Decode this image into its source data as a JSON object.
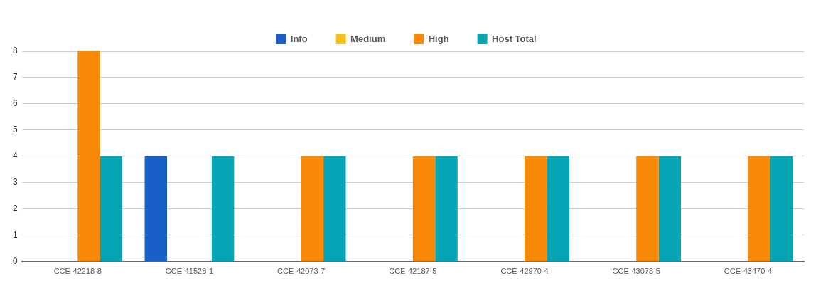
{
  "chart_data": {
    "type": "bar",
    "categories": [
      "CCE-42218-8",
      "CCE-41528-1",
      "CCE-42073-7",
      "CCE-42187-5",
      "CCE-42970-4",
      "CCE-43078-5",
      "CCE-43470-4"
    ],
    "series": [
      {
        "name": "Info",
        "color": "#1a5fc8",
        "values": [
          0,
          4,
          0,
          0,
          0,
          0,
          0
        ]
      },
      {
        "name": "Medium",
        "color": "#f9c21a",
        "values": [
          0,
          0,
          0,
          0,
          0,
          0,
          0
        ]
      },
      {
        "name": "High",
        "color": "#f98a07",
        "values": [
          8,
          0,
          4,
          4,
          4,
          4,
          4
        ]
      },
      {
        "name": "Host Total",
        "color": "#05a5b5",
        "values": [
          4,
          4,
          4,
          4,
          4,
          4,
          4
        ]
      }
    ],
    "ylim": [
      0,
      8
    ],
    "yticks": [
      0,
      1,
      2,
      3,
      4,
      5,
      6,
      7,
      8
    ],
    "grid": "y",
    "legend": "top"
  }
}
